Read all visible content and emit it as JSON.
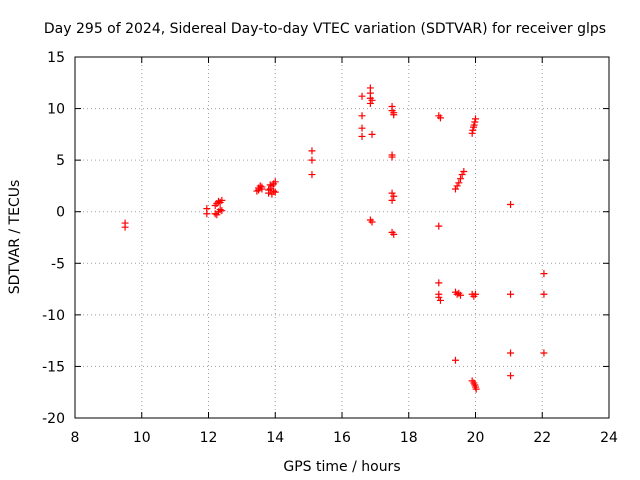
{
  "chart_data": {
    "type": "scatter",
    "title": "Day 295 of 2024, Sidereal Day-to-day VTEC variation (SDTVAR) for receiver glps",
    "xlabel": "GPS time / hours",
    "ylabel": "SDTVAR / TECUs",
    "xlim": [
      8,
      24
    ],
    "ylim": [
      -20,
      15
    ],
    "xticks": [
      8,
      10,
      12,
      14,
      16,
      18,
      20,
      22,
      24
    ],
    "yticks": [
      -20,
      -15,
      -10,
      -5,
      0,
      5,
      10,
      15
    ],
    "grid": true,
    "marker": "plus",
    "color": "#ff0000",
    "series": [
      {
        "name": "SDTVAR",
        "points": [
          [
            9.5,
            -1.1
          ],
          [
            9.5,
            -1.5
          ],
          [
            11.95,
            0.3
          ],
          [
            11.95,
            -0.2
          ],
          [
            12.2,
            0.6
          ],
          [
            12.25,
            0.8
          ],
          [
            12.3,
            1.0
          ],
          [
            12.35,
            0.9
          ],
          [
            12.4,
            1.1
          ],
          [
            12.2,
            -0.2
          ],
          [
            12.25,
            -0.3
          ],
          [
            12.3,
            0.0
          ],
          [
            12.35,
            0.2
          ],
          [
            12.4,
            0.1
          ],
          [
            13.45,
            2.0
          ],
          [
            13.5,
            2.3
          ],
          [
            13.55,
            2.5
          ],
          [
            13.6,
            2.4
          ],
          [
            13.5,
            2.1
          ],
          [
            13.6,
            2.2
          ],
          [
            13.8,
            1.8
          ],
          [
            13.85,
            2.2
          ],
          [
            13.9,
            2.5
          ],
          [
            13.95,
            2.7
          ],
          [
            14.0,
            2.9
          ],
          [
            13.8,
            2.1
          ],
          [
            13.9,
            1.7
          ],
          [
            14.0,
            1.9
          ],
          [
            13.85,
            2.6
          ],
          [
            13.95,
            2.0
          ],
          [
            15.1,
            5.9
          ],
          [
            15.1,
            5.0
          ],
          [
            15.1,
            3.6
          ],
          [
            16.6,
            11.2
          ],
          [
            16.6,
            9.3
          ],
          [
            16.6,
            8.1
          ],
          [
            16.6,
            7.3
          ],
          [
            16.85,
            12.0
          ],
          [
            16.85,
            11.5
          ],
          [
            16.85,
            11.0
          ],
          [
            16.85,
            10.5
          ],
          [
            16.9,
            10.8
          ],
          [
            16.9,
            7.5
          ],
          [
            16.85,
            -0.8
          ],
          [
            16.9,
            -1.0
          ],
          [
            17.5,
            10.2
          ],
          [
            17.5,
            9.8
          ],
          [
            17.55,
            9.6
          ],
          [
            17.55,
            9.4
          ],
          [
            17.5,
            5.5
          ],
          [
            17.5,
            5.3
          ],
          [
            17.5,
            1.8
          ],
          [
            17.55,
            1.5
          ],
          [
            17.5,
            1.1
          ],
          [
            17.5,
            -2.0
          ],
          [
            17.55,
            -2.2
          ],
          [
            18.9,
            9.3
          ],
          [
            18.95,
            9.1
          ],
          [
            18.9,
            -1.4
          ],
          [
            18.9,
            -6.9
          ],
          [
            18.9,
            -8.0
          ],
          [
            18.9,
            -8.3
          ],
          [
            18.95,
            -8.6
          ],
          [
            19.4,
            -14.4
          ],
          [
            19.4,
            2.2
          ],
          [
            19.45,
            2.5
          ],
          [
            19.5,
            2.8
          ],
          [
            19.55,
            3.2
          ],
          [
            19.6,
            3.6
          ],
          [
            19.65,
            3.9
          ],
          [
            19.4,
            -7.8
          ],
          [
            19.45,
            -8.0
          ],
          [
            19.5,
            -7.9
          ],
          [
            19.55,
            -8.1
          ],
          [
            19.9,
            7.6
          ],
          [
            19.92,
            7.9
          ],
          [
            19.94,
            8.2
          ],
          [
            19.96,
            8.4
          ],
          [
            19.98,
            8.7
          ],
          [
            20.0,
            9.0
          ],
          [
            19.9,
            -8.0
          ],
          [
            19.95,
            -8.2
          ],
          [
            20.0,
            -8.0
          ],
          [
            19.9,
            -16.4
          ],
          [
            19.95,
            -16.6
          ],
          [
            19.98,
            -16.8
          ],
          [
            20.0,
            -17.0
          ],
          [
            20.02,
            -17.2
          ],
          [
            21.05,
            0.7
          ],
          [
            21.05,
            -8.0
          ],
          [
            21.05,
            -13.7
          ],
          [
            21.05,
            -15.9
          ],
          [
            22.05,
            -6.0
          ],
          [
            22.05,
            -8.0
          ],
          [
            22.05,
            -13.7
          ]
        ]
      }
    ]
  }
}
